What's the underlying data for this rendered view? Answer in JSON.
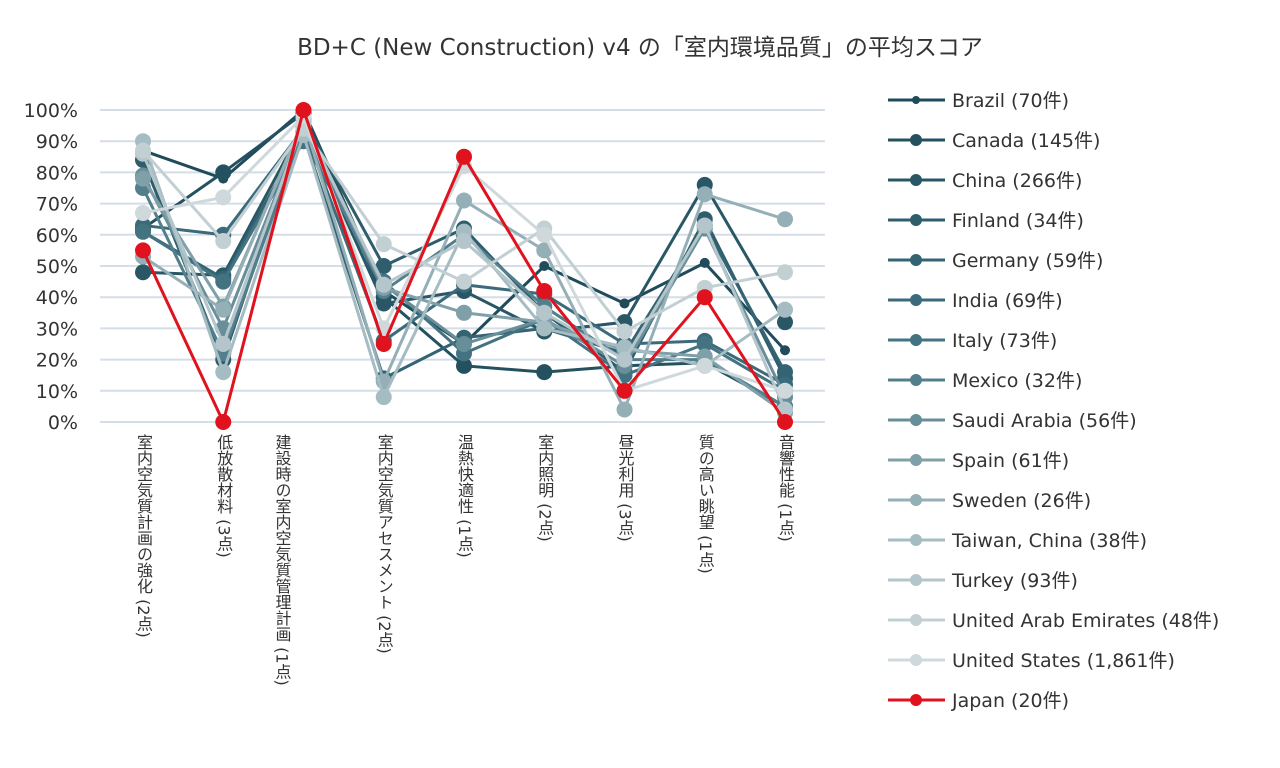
{
  "chart_data": {
    "type": "line",
    "title": "BD+C (New Construction) v4 の「室内環境品質」の平均スコア",
    "categories": [
      "室内空気質計画の強化 (2点)",
      "低放散材料 (3点)",
      "建設時の室内空気質管理計画 (1点)",
      "室内空気質アセスメント (2点)",
      "温熱快適性 (1点)",
      "室内照明 (2点)",
      "昼光利用 (3点)",
      "質の高い眺望 (1点)",
      "音響性能 (1点)"
    ],
    "yticks": [
      "0%",
      "10%",
      "20%",
      "30%",
      "40%",
      "50%",
      "60%",
      "70%",
      "80%",
      "90%",
      "100%"
    ],
    "ylim": [
      0,
      100
    ],
    "grid": true,
    "legend": "right",
    "series": [
      {
        "name": "Brazil (70件)",
        "color": "#1f4b5a",
        "values": [
          87,
          78,
          100,
          42,
          25,
          50,
          38,
          51,
          23
        ]
      },
      {
        "name": "Canada (145件)",
        "color": "#24515f",
        "values": [
          62,
          80,
          99,
          40,
          18,
          16,
          18,
          19,
          5
        ]
      },
      {
        "name": "China (266件)",
        "color": "#295766",
        "values": [
          48,
          47,
          95,
          38,
          42,
          29,
          32,
          76,
          32
        ]
      },
      {
        "name": "Finland (34件)",
        "color": "#2e5d6c",
        "values": [
          84,
          20,
          97,
          50,
          62,
          35,
          16,
          65,
          14
        ]
      },
      {
        "name": "Germany (59件)",
        "color": "#346473",
        "values": [
          61,
          46,
          92,
          14,
          27,
          30,
          22,
          63,
          16
        ]
      },
      {
        "name": "India (69件)",
        "color": "#3b6b7a",
        "values": [
          63,
          60,
          94,
          26,
          44,
          41,
          25,
          26,
          12
        ]
      },
      {
        "name": "Italy (73件)",
        "color": "#437381",
        "values": [
          61,
          45,
          90,
          45,
          22,
          33,
          15,
          25,
          10
        ]
      },
      {
        "name": "Mexico (32件)",
        "color": "#537f8c",
        "values": [
          75,
          22,
          93,
          42,
          60,
          37,
          20,
          20,
          5
        ]
      },
      {
        "name": "Saudi Arabia (56件)",
        "color": "#678e99",
        "values": [
          79,
          30,
          95,
          44,
          25,
          33,
          18,
          62,
          8
        ]
      },
      {
        "name": "Spain (61件)",
        "color": "#7f9fa9",
        "values": [
          78,
          37,
          96,
          43,
          35,
          32,
          23,
          21,
          3
        ]
      },
      {
        "name": "Sweden (26件)",
        "color": "#95afb7",
        "values": [
          53,
          36,
          97,
          13,
          71,
          55,
          4,
          73,
          65
        ]
      },
      {
        "name": "Taiwan, China (38件)",
        "color": "#a6bcc3",
        "values": [
          90,
          16,
          92,
          8,
          61,
          30,
          24,
          18,
          36
        ]
      },
      {
        "name": "Turkey (93件)",
        "color": "#b4c5cb",
        "values": [
          86,
          25,
          96,
          44,
          58,
          35,
          20,
          63,
          4
        ]
      },
      {
        "name": "United Arab Emirates (48件)",
        "color": "#c2d0d4",
        "values": [
          87,
          58,
          94,
          57,
          45,
          62,
          29,
          43,
          48
        ]
      },
      {
        "name": "United States (1,861件)",
        "color": "#cfd9dc",
        "values": [
          67,
          72,
          98,
          30,
          82,
          60,
          10,
          18,
          10
        ]
      },
      {
        "name": "Japan (20件)",
        "color": "#e0121e",
        "values": [
          55,
          0,
          100,
          25,
          85,
          42,
          10,
          40,
          0
        ]
      }
    ]
  }
}
